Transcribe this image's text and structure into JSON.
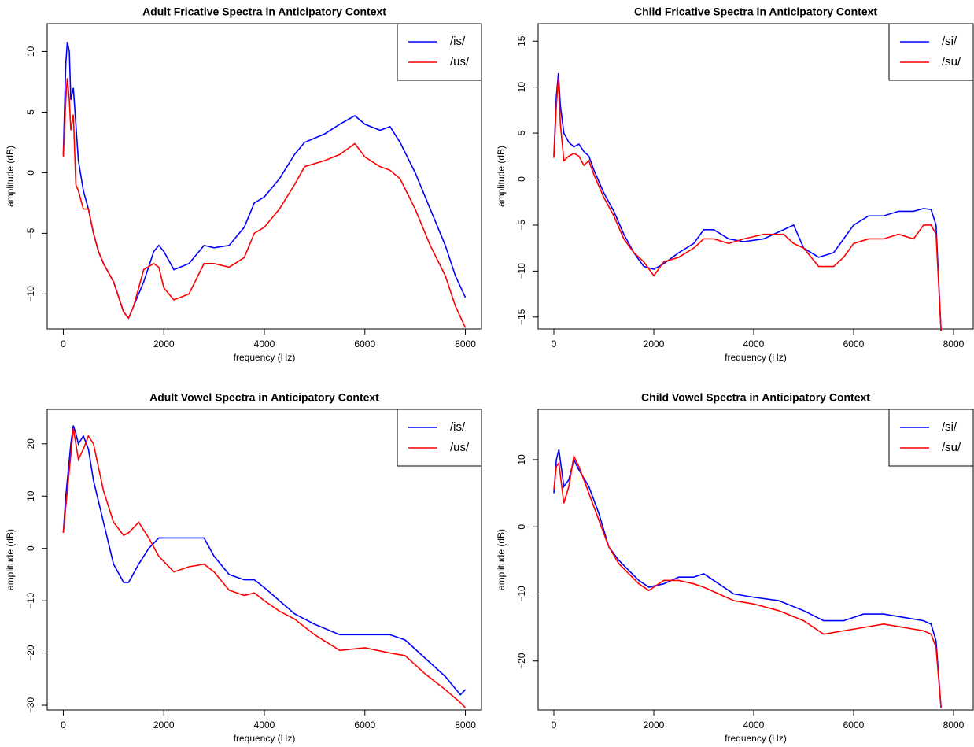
{
  "chart_data": [
    {
      "type": "line",
      "title": "Adult Fricative Spectra in Anticipatory Context",
      "xlabel": "frequency (Hz)",
      "ylabel": "amplitude (dB)",
      "legend": "top-right",
      "x": [
        0,
        50,
        80,
        120,
        150,
        200,
        250,
        300,
        400,
        500,
        600,
        700,
        800,
        1000,
        1200,
        1300,
        1400,
        1600,
        1800,
        1900,
        2000,
        2200,
        2500,
        2800,
        3000,
        3300,
        3600,
        3800,
        4000,
        4300,
        4600,
        4800,
        5200,
        5500,
        5800,
        6000,
        6300,
        6500,
        6700,
        7000,
        7300,
        7600,
        7800,
        8000
      ],
      "series": [
        {
          "name": "/is/",
          "color": "#0000ff",
          "values": [
            1.5,
            9,
            10.8,
            10,
            6,
            7,
            4,
            1,
            -1.5,
            -3,
            -5,
            -6.5,
            -7.5,
            -9,
            -11.5,
            -12,
            -11,
            -9,
            -6.5,
            -6,
            -6.5,
            -8,
            -7.5,
            -6,
            -6.2,
            -6,
            -4.5,
            -2.5,
            -2,
            -0.5,
            1.5,
            2.5,
            3.2,
            4,
            4.7,
            4,
            3.5,
            3.8,
            2.5,
            0,
            -3,
            -6,
            -8.5,
            -10.3
          ]
        },
        {
          "name": "/us/",
          "color": "#ff0000",
          "values": [
            1.3,
            6,
            7.8,
            6,
            3.5,
            4.8,
            -1,
            -1.5,
            -3,
            -3,
            -5,
            -6.5,
            -7.5,
            -9,
            -11.5,
            -12,
            -11,
            -8,
            -7.5,
            -7.8,
            -9.5,
            -10.5,
            -10,
            -7.5,
            -7.5,
            -7.8,
            -7,
            -5,
            -4.5,
            -3,
            -1,
            0.5,
            1,
            1.5,
            2.4,
            1.3,
            0.5,
            0.2,
            -0.5,
            -3,
            -6,
            -8.5,
            -11,
            -12.8
          ]
        }
      ],
      "xlim": [
        -320,
        8320
      ],
      "ylim": [
        -12.9,
        12.3
      ],
      "xticks": [
        0,
        2000,
        4000,
        6000,
        8000
      ],
      "yticks": [
        {
          "value": -10,
          "label": "−10"
        },
        {
          "value": -5,
          "label": "−5"
        },
        0,
        5,
        10
      ]
    },
    {
      "type": "line",
      "title": "Child Fricative Spectra in Anticipatory Context",
      "xlabel": "frequency (Hz)",
      "ylabel": "amplitude (dB)",
      "legend": "top-right",
      "x": [
        0,
        50,
        90,
        130,
        200,
        300,
        400,
        500,
        600,
        700,
        800,
        1000,
        1200,
        1400,
        1600,
        1800,
        2000,
        2200,
        2500,
        2800,
        3000,
        3200,
        3500,
        3800,
        4200,
        4600,
        4800,
        5000,
        5300,
        5600,
        5800,
        6000,
        6300,
        6600,
        6900,
        7200,
        7400,
        7550,
        7650,
        7750
      ],
      "series": [
        {
          "name": "/si/",
          "color": "#0000ff",
          "values": [
            2.5,
            9,
            11.5,
            8,
            5,
            4,
            3.5,
            3.8,
            3,
            2.5,
            1,
            -1.5,
            -3.5,
            -6,
            -8,
            -9.5,
            -9.8,
            -9.2,
            -8,
            -7,
            -5.5,
            -5.5,
            -6.5,
            -6.8,
            -6.5,
            -5.5,
            -5,
            -7.5,
            -8.5,
            -8,
            -6.5,
            -5,
            -4,
            -4,
            -3.5,
            -3.5,
            -3.2,
            -3.3,
            -5,
            -16.5
          ]
        },
        {
          "name": "/su/",
          "color": "#ff0000",
          "values": [
            2.3,
            8,
            11,
            6,
            2,
            2.5,
            2.8,
            2.5,
            1.5,
            2,
            0.5,
            -2,
            -4,
            -6.5,
            -8,
            -9,
            -10.5,
            -9,
            -8.5,
            -7.5,
            -6.5,
            -6.5,
            -7,
            -6.5,
            -6,
            -6,
            -7,
            -7.5,
            -9.5,
            -9.5,
            -8.5,
            -7,
            -6.5,
            -6.5,
            -6,
            -6.5,
            -5,
            -5,
            -6,
            -16.5
          ]
        }
      ],
      "xlim": [
        -315,
        8394
      ],
      "ylim": [
        -16.3,
        16.9
      ],
      "xticks": [
        0,
        2000,
        4000,
        6000,
        8000
      ],
      "yticks": [
        {
          "value": -15,
          "label": "−15"
        },
        {
          "value": -10,
          "label": "−10"
        },
        {
          "value": -5,
          "label": "−5"
        },
        0,
        5,
        10,
        15
      ]
    },
    {
      "type": "line",
      "title": "Adult Vowel Spectra in Anticipatory Context",
      "xlabel": "frequency (Hz)",
      "ylabel": "amplitude (dB)",
      "legend": "top-right",
      "x": [
        0,
        50,
        150,
        200,
        250,
        300,
        400,
        500,
        600,
        800,
        1000,
        1200,
        1300,
        1500,
        1700,
        1900,
        2200,
        2500,
        2800,
        3000,
        3300,
        3600,
        3800,
        4000,
        4300,
        4600,
        5000,
        5500,
        6000,
        6500,
        6800,
        7200,
        7600,
        7900,
        8000
      ],
      "series": [
        {
          "name": "/is/",
          "color": "#0000ff",
          "values": [
            3,
            10,
            20,
            23.5,
            22,
            20,
            21.5,
            19,
            13,
            5,
            -3,
            -6.5,
            -6.5,
            -3,
            0,
            2,
            2,
            2,
            2,
            -1.5,
            -5,
            -6,
            -6,
            -7.5,
            -10,
            -12.5,
            -14.5,
            -16.5,
            -16.5,
            -16.5,
            -17.5,
            -21,
            -24.5,
            -28,
            -27
          ]
        },
        {
          "name": "/us/",
          "color": "#ff0000",
          "values": [
            3,
            8,
            18,
            23,
            20,
            17,
            19,
            21.5,
            20,
            11,
            5,
            2.5,
            3,
            5,
            2,
            -1.5,
            -4.5,
            -3.5,
            -3,
            -4.5,
            -8,
            -9,
            -8.5,
            -10,
            -12,
            -13.5,
            -16.5,
            -19.5,
            -19,
            -20,
            -20.5,
            -24,
            -27,
            -29.5,
            -30.5
          ]
        }
      ],
      "xlim": [
        -320,
        8320
      ],
      "ylim": [
        -30.9,
        26.6
      ],
      "xticks": [
        0,
        2000,
        4000,
        6000,
        8000
      ],
      "yticks": [
        {
          "value": -30,
          "label": "−30"
        },
        {
          "value": -20,
          "label": "−20"
        },
        {
          "value": -10,
          "label": "−10"
        },
        0,
        10,
        20
      ]
    },
    {
      "type": "line",
      "title": "Child Vowel Spectra in Anticipatory Context",
      "xlabel": "frequency (Hz)",
      "ylabel": "amplitude (dB)",
      "legend": "top-right",
      "x": [
        0,
        50,
        100,
        200,
        300,
        400,
        500,
        700,
        900,
        1100,
        1300,
        1500,
        1700,
        1900,
        2200,
        2500,
        2800,
        3000,
        3300,
        3600,
        4000,
        4500,
        5000,
        5400,
        5800,
        6200,
        6600,
        7000,
        7400,
        7550,
        7650,
        7750
      ],
      "series": [
        {
          "name": "/si/",
          "color": "#0000ff",
          "values": [
            5,
            10,
            11.5,
            6,
            7,
            10,
            8.5,
            6,
            2,
            -3,
            -5,
            -6.5,
            -8,
            -9,
            -8.5,
            -7.5,
            -7.5,
            -7,
            -8.5,
            -10,
            -10.5,
            -11,
            -12.5,
            -14,
            -14,
            -13,
            -13,
            -13.5,
            -14,
            -14.5,
            -17,
            -27
          ]
        },
        {
          "name": "/su/",
          "color": "#ff0000",
          "values": [
            5.5,
            9,
            9.5,
            3.5,
            6,
            10.5,
            9,
            5,
            1,
            -3,
            -5.5,
            -7,
            -8.5,
            -9.5,
            -8,
            -8,
            -8.5,
            -9,
            -10,
            -11,
            -11.5,
            -12.5,
            -14,
            -16,
            -15.5,
            -15,
            -14.5,
            -15,
            -15.5,
            -16,
            -18,
            -27
          ]
        }
      ],
      "xlim": [
        -315,
        8394
      ],
      "ylim": [
        -27.3,
        17.5
      ],
      "xticks": [
        0,
        2000,
        4000,
        6000,
        8000
      ],
      "yticks": [
        {
          "value": -20,
          "label": "−20"
        },
        {
          "value": -10,
          "label": "−10"
        },
        0,
        10
      ]
    }
  ]
}
